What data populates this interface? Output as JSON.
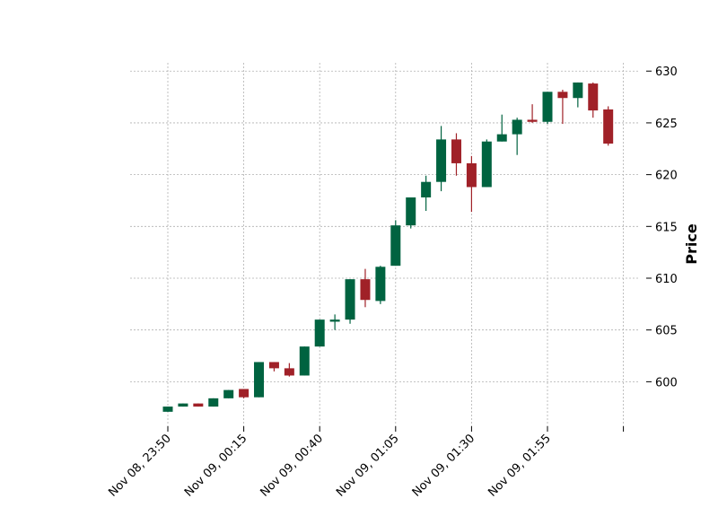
{
  "chart_data": {
    "type": "candlestick",
    "title": "",
    "xlabel": "",
    "ylabel": "Price",
    "ylim": [
      595.7,
      630.8
    ],
    "grid": true,
    "colors": {
      "up": "#006340",
      "down": "#a02128",
      "grid": "#b0b0b0"
    },
    "y_ticks": [
      600,
      605,
      610,
      615,
      620,
      625,
      630
    ],
    "x_ticks": [
      {
        "index": 0,
        "label": "Nov 08, 23:50"
      },
      {
        "index": 5,
        "label": "Nov 09, 00:15"
      },
      {
        "index": 10,
        "label": "Nov 09, 00:40"
      },
      {
        "index": 15,
        "label": "Nov 09, 01:05"
      },
      {
        "index": 20,
        "label": "Nov 09, 01:30"
      },
      {
        "index": 25,
        "label": "Nov 09, 01:55"
      },
      {
        "index": 30,
        "label": ""
      }
    ],
    "candles": [
      {
        "time": "Nov 08, 23:50",
        "open": 597.1,
        "high": 597.6,
        "low": 597.1,
        "close": 597.6
      },
      {
        "time": "Nov 08, 23:55",
        "open": 597.6,
        "high": 597.9,
        "low": 597.6,
        "close": 597.9
      },
      {
        "time": "Nov 09, 00:00",
        "open": 597.9,
        "high": 597.9,
        "low": 597.6,
        "close": 597.6
      },
      {
        "time": "Nov 09, 00:05",
        "open": 597.6,
        "high": 598.4,
        "low": 597.6,
        "close": 598.4
      },
      {
        "time": "Nov 09, 00:10",
        "open": 598.4,
        "high": 599.2,
        "low": 598.4,
        "close": 599.2
      },
      {
        "time": "Nov 09, 00:15",
        "open": 599.3,
        "high": 599.3,
        "low": 598.4,
        "close": 598.5
      },
      {
        "time": "Nov 09, 00:20",
        "open": 598.5,
        "high": 601.9,
        "low": 598.5,
        "close": 601.9
      },
      {
        "time": "Nov 09, 00:25",
        "open": 601.9,
        "high": 601.9,
        "low": 601.0,
        "close": 601.3
      },
      {
        "time": "Nov 09, 00:30",
        "open": 601.3,
        "high": 601.8,
        "low": 600.5,
        "close": 600.6
      },
      {
        "time": "Nov 09, 00:35",
        "open": 600.6,
        "high": 603.4,
        "low": 600.6,
        "close": 603.4
      },
      {
        "time": "Nov 09, 00:40",
        "open": 603.4,
        "high": 606.0,
        "low": 603.4,
        "close": 606.0
      },
      {
        "time": "Nov 09, 00:45",
        "open": 605.8,
        "high": 606.5,
        "low": 605.0,
        "close": 606.0
      },
      {
        "time": "Nov 09, 00:50",
        "open": 606.0,
        "high": 609.9,
        "low": 605.6,
        "close": 609.9
      },
      {
        "time": "Nov 09, 00:55",
        "open": 609.9,
        "high": 610.9,
        "low": 607.2,
        "close": 607.9
      },
      {
        "time": "Nov 09, 01:00",
        "open": 607.8,
        "high": 611.2,
        "low": 607.5,
        "close": 611.1
      },
      {
        "time": "Nov 09, 01:05",
        "open": 611.2,
        "high": 615.6,
        "low": 611.2,
        "close": 615.1
      },
      {
        "time": "Nov 09, 01:10",
        "open": 615.1,
        "high": 617.8,
        "low": 614.8,
        "close": 617.8
      },
      {
        "time": "Nov 09, 01:15",
        "open": 617.8,
        "high": 619.9,
        "low": 616.5,
        "close": 619.3
      },
      {
        "time": "Nov 09, 01:20",
        "open": 619.3,
        "high": 624.7,
        "low": 618.4,
        "close": 623.4
      },
      {
        "time": "Nov 09, 01:25",
        "open": 623.4,
        "high": 624.0,
        "low": 619.9,
        "close": 621.1
      },
      {
        "time": "Nov 09, 01:30",
        "open": 621.1,
        "high": 621.8,
        "low": 616.4,
        "close": 618.8
      },
      {
        "time": "Nov 09, 01:35",
        "open": 618.8,
        "high": 623.4,
        "low": 618.8,
        "close": 623.2
      },
      {
        "time": "Nov 09, 01:40",
        "open": 623.2,
        "high": 625.8,
        "low": 623.2,
        "close": 623.9
      },
      {
        "time": "Nov 09, 01:45",
        "open": 623.9,
        "high": 625.5,
        "low": 621.9,
        "close": 625.3
      },
      {
        "time": "Nov 09, 01:50",
        "open": 625.3,
        "high": 626.8,
        "low": 625.0,
        "close": 625.1
      },
      {
        "time": "Nov 09, 01:55",
        "open": 625.1,
        "high": 628.0,
        "low": 624.9,
        "close": 628.0
      },
      {
        "time": "Nov 09, 02:00",
        "open": 628.0,
        "high": 628.2,
        "low": 624.9,
        "close": 627.4
      },
      {
        "time": "Nov 09, 02:05",
        "open": 627.4,
        "high": 628.9,
        "low": 626.5,
        "close": 628.9
      },
      {
        "time": "Nov 09, 02:10",
        "open": 628.8,
        "high": 628.9,
        "low": 625.5,
        "close": 626.2
      },
      {
        "time": "Nov 09, 02:15",
        "open": 626.3,
        "high": 626.6,
        "low": 622.8,
        "close": 623.0
      }
    ]
  }
}
